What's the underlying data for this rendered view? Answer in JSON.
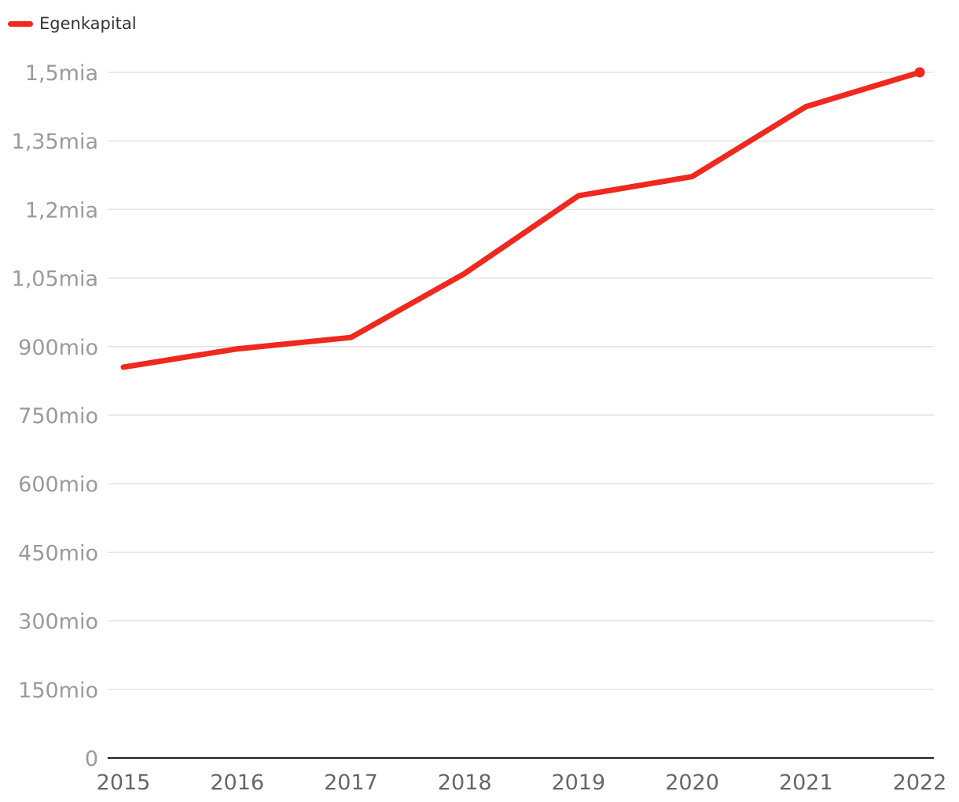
{
  "chart_data": {
    "type": "line",
    "title": "",
    "xlabel": "",
    "ylabel": "",
    "x": [
      "2015",
      "2016",
      "2017",
      "2018",
      "2019",
      "2020",
      "2021",
      "2022"
    ],
    "series": [
      {
        "name": "Egenkapital",
        "color": "#f0281e",
        "values": [
          855000000,
          895000000,
          920000000,
          1060000000,
          1230000000,
          1272000000,
          1425000000,
          1500000000
        ]
      }
    ],
    "ylim": [
      0,
      1500000000
    ],
    "yticks": [
      0,
      150000000,
      300000000,
      450000000,
      600000000,
      750000000,
      900000000,
      1050000000,
      1200000000,
      1350000000,
      1500000000
    ],
    "ytick_labels": [
      "0",
      "150mio",
      "300mio",
      "450mio",
      "600mio",
      "750mio",
      "900mio",
      "1,05mia",
      "1,2mia",
      "1,35mia",
      "1,5mia"
    ],
    "grid": true,
    "legend_position": "top-left",
    "end_marker": true
  }
}
